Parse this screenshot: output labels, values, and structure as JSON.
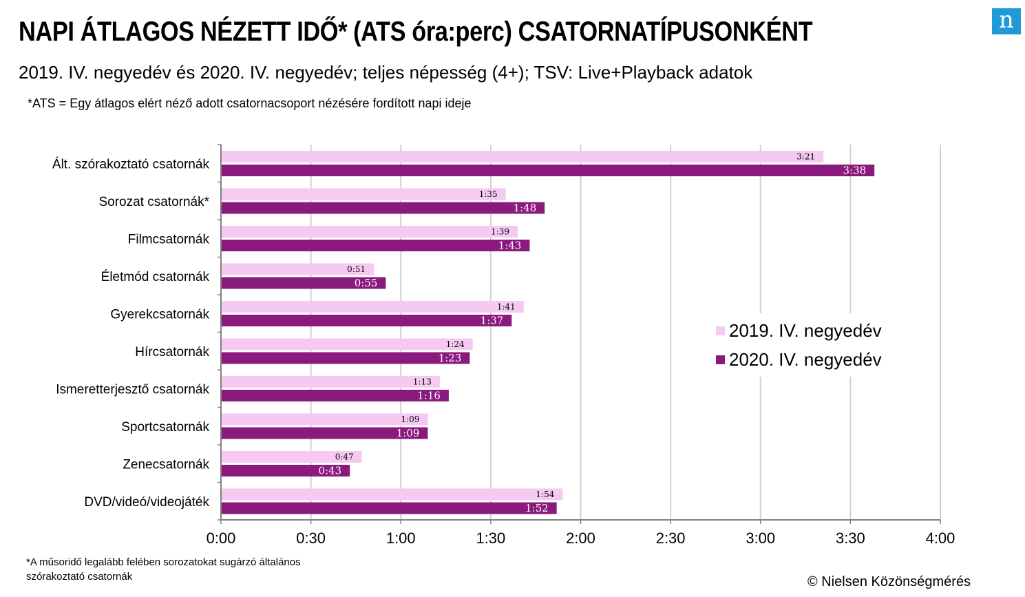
{
  "header": {
    "title": "NAPI ÁTLAGOS NÉZETT IDŐ* (ATS óra:perc) CSATORNATÍPUSONKÉNT",
    "subtitle": "2019. IV. negyedév és 2020. IV. negyedév; teljes népesség (4+); TSV: Live+Playback adatok",
    "note": "*ATS = Egy átlagos elért néző adott csatornacsoport nézésére fordított napi ideje",
    "logo": "n"
  },
  "footer": {
    "footnote": "*A műsoridő legalább felében sorozatokat sugárzó általános szórakoztató csatornák",
    "copyright": "© Nielsen Közönségmérés"
  },
  "colors": {
    "series_2019": "#f5c9f1",
    "series_2020": "#8a1a7e",
    "grid": "#d0d0d0",
    "axis": "#808080",
    "logo": "#1f9ad6"
  },
  "chart_data": {
    "type": "bar",
    "orientation": "horizontal",
    "value_unit": "minutes",
    "categories": [
      "Ált. szórakoztató csatornák",
      "Sorozat csatornák*",
      "Filmcsatornák",
      "Életmód csatornák",
      "Gyerekcsatornák",
      "Hírcsatornák",
      "Ismeretterjesztő csatornák",
      "Sportcsatornák",
      "Zenecsatornák",
      "DVD/videó/videojáték"
    ],
    "series": [
      {
        "name": "2019. IV. negyedév",
        "values": [
          201,
          95,
          99,
          51,
          101,
          84,
          73,
          69,
          47,
          114
        ],
        "labels": [
          "3:21",
          "1:35",
          "1:39",
          "0:51",
          "1:41",
          "1:24",
          "1:13",
          "1:09",
          "0:47",
          "1:54"
        ]
      },
      {
        "name": "2020. IV. negyedév",
        "values": [
          218,
          108,
          103,
          55,
          97,
          83,
          76,
          69,
          43,
          112
        ],
        "labels": [
          "3:38",
          "1:48",
          "1:43",
          "0:55",
          "1:37",
          "1:23",
          "1:16",
          "1:09",
          "0:43",
          "1:52"
        ]
      }
    ],
    "xlim": [
      0,
      240
    ],
    "x_ticks": [
      0,
      30,
      60,
      90,
      120,
      150,
      180,
      210,
      240
    ],
    "x_tick_labels": [
      "0:00",
      "0:30",
      "1:00",
      "1:30",
      "2:00",
      "2:30",
      "3:00",
      "3:30",
      "4:00"
    ],
    "grid": "vertical",
    "legend_position": "right"
  }
}
